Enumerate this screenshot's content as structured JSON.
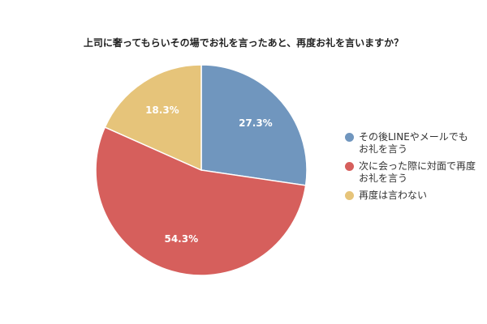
{
  "chart_data": {
    "type": "pie",
    "title": "上司に奢ってもらいその場でお礼を言ったあと、再度お礼を言いますか？",
    "slices": [
      {
        "label": "その後LINEやメールでも\nお礼を言う",
        "value": 27.3,
        "value_label": "27.3%",
        "color": "#7096be"
      },
      {
        "label": "次に会った際に対面で再度\nお礼を言う",
        "value": 54.3,
        "value_label": "54.3%",
        "color": "#d65f5c"
      },
      {
        "label": "再度は言わない",
        "value": 18.3,
        "value_label": "18.3%",
        "color": "#e6c47a"
      }
    ],
    "legend_position": "right"
  }
}
